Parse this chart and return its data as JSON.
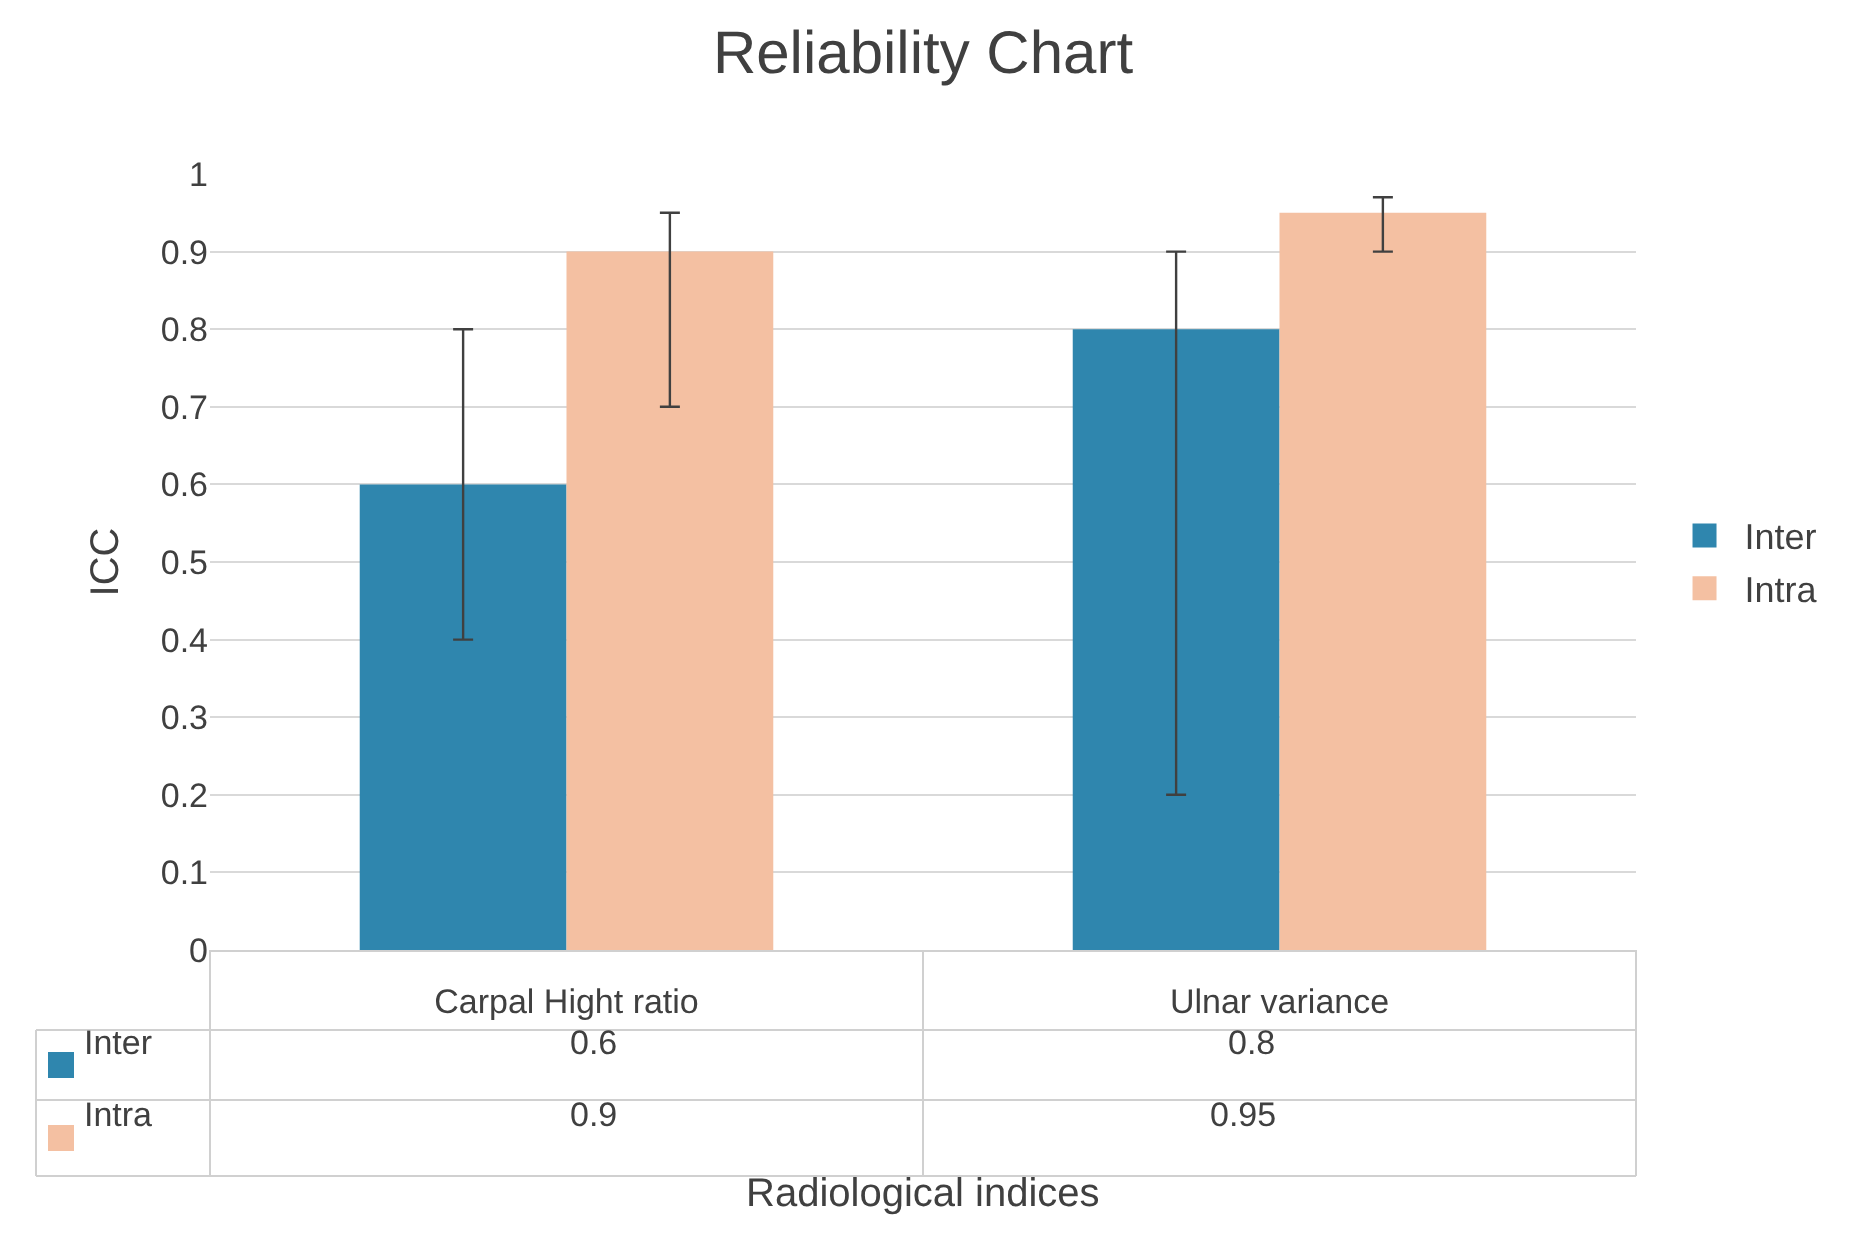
{
  "chart_data": {
    "type": "bar",
    "title": "Reliability Chart",
    "xlabel": "Radiological indices",
    "ylabel": "ICC",
    "categories": [
      "Carpal Hight ratio",
      "Ulnar variance"
    ],
    "series": [
      {
        "name": "Inter",
        "color": "#2f86ae",
        "values": [
          0.6,
          0.8
        ],
        "errors": [
          [
            0.4,
            0.8
          ],
          [
            0.2,
            0.9
          ]
        ]
      },
      {
        "name": "Intra",
        "color": "#f4c0a2",
        "values": [
          0.9,
          0.95
        ],
        "errors": [
          [
            0.7,
            0.95
          ],
          [
            0.9,
            0.97
          ]
        ]
      }
    ],
    "ylim": [
      0,
      1
    ],
    "yticks": [
      0,
      0.1,
      0.2,
      0.3,
      0.4,
      0.5,
      0.6,
      0.7,
      0.8,
      0.9,
      1
    ],
    "grid": "y",
    "legend": "right",
    "data_labels": true
  }
}
